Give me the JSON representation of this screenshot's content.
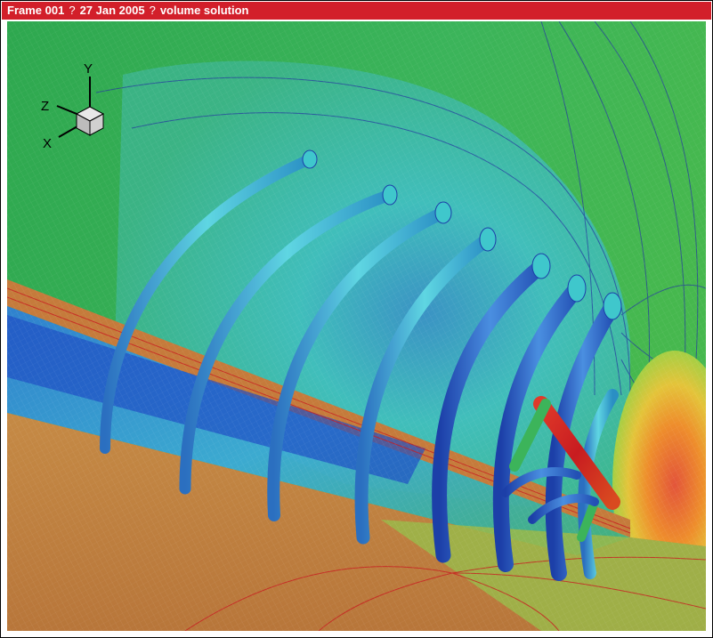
{
  "title_bar": {
    "frame": "Frame 001",
    "separator": "?",
    "date": "27 Jan 2005",
    "label": "volume solution"
  },
  "axes": {
    "x_label": "X",
    "y_label": "Y",
    "z_label": "Z"
  },
  "colors": {
    "title_bar": "#d21f2a",
    "background_field": "#2fa866",
    "mid_field": "#3cc3b7",
    "low_region": "#1f4fc4",
    "wall": "#c9793a",
    "contour_line": "#2437a0",
    "hot_region": "#e5762d",
    "vortex_high": "#d41e1e"
  }
}
